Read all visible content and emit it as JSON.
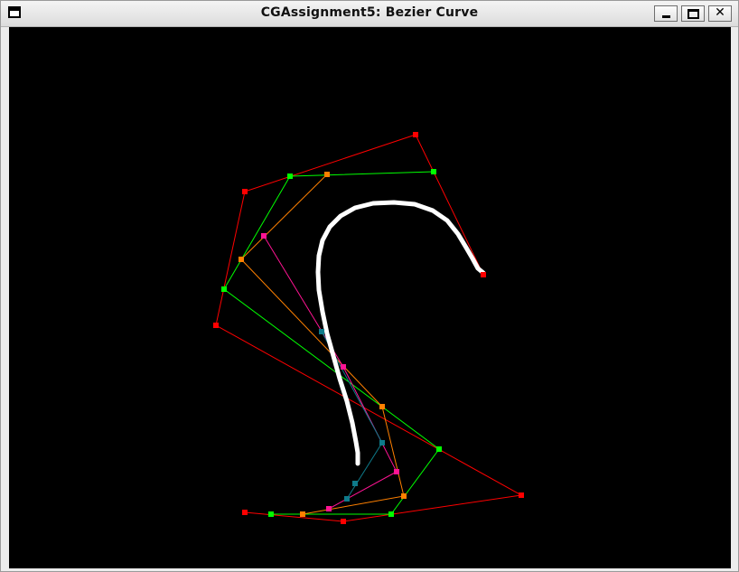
{
  "window": {
    "title": "CGAssignment5: Bezier Curve",
    "close_symbol": "✕"
  },
  "colors": {
    "canvas_bg": "#000000",
    "control_polygon": "#ff0000",
    "level1": "#00ff00",
    "level2": "#ff8000",
    "level3": "#ff1493",
    "level4": "#0e7a8a",
    "curve": "#ffffff"
  },
  "icons": [
    "window-menu-icon",
    "minimize-icon",
    "maximize-icon",
    "close-icon"
  ]
}
